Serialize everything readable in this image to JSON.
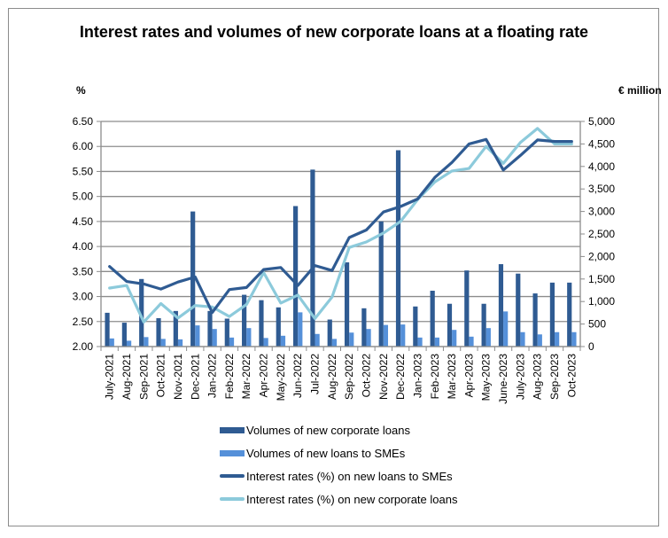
{
  "chart_data": {
    "type": "bar",
    "title": "Interest rates and volumes of new corporate loans at a floating rate",
    "ylabel_left": "%",
    "ylabel_right": "€ million",
    "xlabel": "",
    "ylim_left": [
      2.0,
      6.5
    ],
    "ylim_right": [
      0,
      5000
    ],
    "yticks_left": [
      "2.00",
      "2.50",
      "3.00",
      "3.50",
      "4.00",
      "4.50",
      "5.00",
      "5.50",
      "6.00",
      "6.50"
    ],
    "yticks_right": [
      "0",
      "500",
      "1,000",
      "1,500",
      "2,000",
      "2,500",
      "3,000",
      "3,500",
      "4,000",
      "4,500",
      "5,000"
    ],
    "grid": true,
    "legend_position": "bottom",
    "categories": [
      "July-2021",
      "Aug-2021",
      "Sep-2021",
      "Oct-2021",
      "Nov-2021",
      "Dec-2021",
      "Jan-2022",
      "Feb-2022",
      "Mar-2022",
      "Apr-2022",
      "May-2022",
      "Jun-2022",
      "Jul-2022",
      "Aug-2022",
      "Sep-2022",
      "Oct-2022",
      "Nov-2022",
      "Dec-2022",
      "Jan-2023",
      "Feb-2023",
      "Mar-2023",
      "Apr-2023",
      "May-2023",
      "June-2023",
      "July-2023",
      "Aug-2023",
      "Sep-2023",
      "Oct-2023"
    ],
    "series": [
      {
        "name": "Volumes of new corporate loans",
        "type": "bar",
        "axis": "right",
        "color": "#2f5b92",
        "values": [
          750,
          530,
          1500,
          630,
          790,
          3000,
          790,
          620,
          1150,
          1030,
          870,
          3120,
          3930,
          600,
          1870,
          850,
          2780,
          4360,
          890,
          1240,
          950,
          1690,
          950,
          1830,
          1620,
          1180,
          1420,
          1420
        ]
      },
      {
        "name": "Volumes of new loans to SMEs",
        "type": "bar",
        "axis": "right",
        "color": "#5590d9",
        "values": [
          180,
          130,
          210,
          170,
          160,
          470,
          390,
          200,
          410,
          190,
          240,
          760,
          280,
          170,
          310,
          390,
          480,
          490,
          200,
          200,
          370,
          220,
          410,
          780,
          320,
          270,
          320,
          320
        ]
      },
      {
        "name": "Interest rates (%) on new loans to SMEs",
        "type": "line",
        "axis": "left",
        "color": "#2f5b92",
        "values": [
          3.6,
          3.3,
          3.25,
          3.15,
          3.29,
          3.39,
          2.68,
          3.14,
          3.18,
          3.54,
          3.58,
          3.22,
          3.62,
          3.52,
          4.18,
          4.33,
          4.69,
          4.8,
          4.95,
          5.38,
          5.68,
          6.05,
          6.14,
          5.53,
          5.82,
          6.13,
          6.1,
          6.1
        ]
      },
      {
        "name": "Interest rates (%) on new corporate loans",
        "type": "line",
        "axis": "left",
        "color": "#8ccadb",
        "values": [
          3.17,
          3.22,
          2.49,
          2.86,
          2.57,
          2.82,
          2.79,
          2.6,
          2.84,
          3.48,
          2.87,
          3.03,
          2.56,
          2.99,
          3.98,
          4.09,
          4.27,
          4.5,
          4.94,
          5.29,
          5.51,
          5.56,
          6.0,
          5.66,
          6.08,
          6.36,
          6.05,
          6.05
        ]
      }
    ]
  },
  "colors": {
    "corporate_volume_bar": "#2f5b92",
    "sme_volume_bar": "#5590d9",
    "sme_rate_line": "#2f5b92",
    "corporate_rate_line": "#8ccadb",
    "gridline": "#8c8c8c"
  }
}
